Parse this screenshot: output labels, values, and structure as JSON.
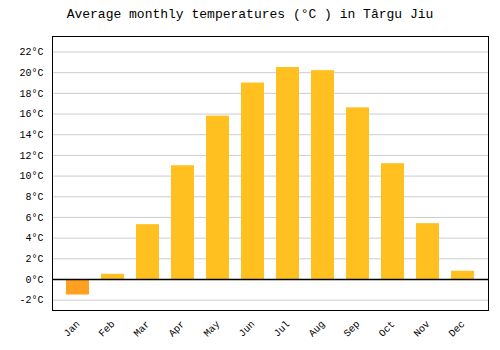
{
  "chart_data": {
    "type": "bar",
    "title": "Average monthly temperatures (°C ) in Târgu Jiu",
    "categories": [
      "Jan",
      "Feb",
      "Mar",
      "Apr",
      "May",
      "Jun",
      "Jul",
      "Aug",
      "Sep",
      "Oct",
      "Nov",
      "Dec"
    ],
    "values": [
      -1.5,
      0.5,
      5.3,
      11.0,
      15.8,
      19.0,
      20.5,
      20.2,
      16.6,
      11.2,
      5.4,
      0.8
    ],
    "colors": [
      "#FFA020",
      "#FFC020",
      "#FFC020",
      "#FFC020",
      "#FFC020",
      "#FFC020",
      "#FFC020",
      "#FFC020",
      "#FFC020",
      "#FFC020",
      "#FFC020",
      "#FFC020"
    ],
    "ylim": [
      -3.0,
      23.5
    ],
    "yticks": [
      {
        "value": -2,
        "label": "-2°C"
      },
      {
        "value": 0,
        "label": "0°C"
      },
      {
        "value": 2,
        "label": "2°C"
      },
      {
        "value": 4,
        "label": "4°C"
      },
      {
        "value": 6,
        "label": "6°C"
      },
      {
        "value": 8,
        "label": "8°C"
      },
      {
        "value": 10,
        "label": "10°C"
      },
      {
        "value": 12,
        "label": "12°C"
      },
      {
        "value": 14,
        "label": "14°C"
      },
      {
        "value": 16,
        "label": "16°C"
      },
      {
        "value": 18,
        "label": "18°C"
      },
      {
        "value": 20,
        "label": "20°C"
      },
      {
        "value": 22,
        "label": "22°C"
      }
    ],
    "grid": true
  }
}
